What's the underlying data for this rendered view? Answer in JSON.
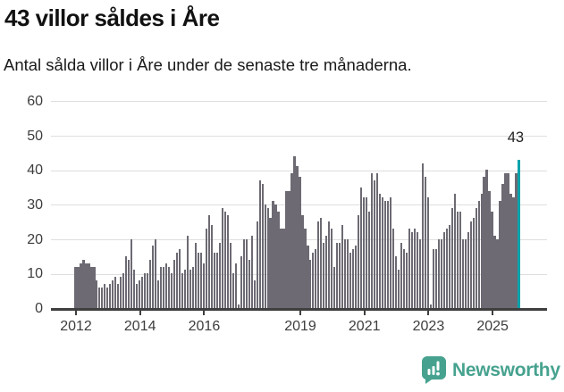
{
  "header": {
    "title": "43 villor såldes i Åre",
    "subtitle": "Antal sålda villor i Åre under de senaste tre månaderna."
  },
  "chart_data": {
    "type": "bar",
    "title": "43 villor såldes i Åre",
    "subtitle": "Antal sålda villor i Åre under de senaste tre månaderna.",
    "frequency": "monthly-rolling-3-months",
    "x_start": "2012-01",
    "x_end": "2025-11",
    "ylim": [
      0,
      60
    ],
    "y_ticks": [
      0,
      10,
      20,
      30,
      40,
      50,
      60
    ],
    "x_tick_years": [
      2012,
      2014,
      2016,
      2019,
      2021,
      2023,
      2025
    ],
    "grid": true,
    "bar_color": "#6d6a73",
    "values": [
      12,
      12,
      13,
      14,
      13,
      13,
      12,
      12,
      8,
      6,
      6,
      7,
      6,
      7,
      8,
      9,
      7,
      9,
      10,
      15,
      14,
      20,
      11,
      7,
      8,
      9,
      10,
      10,
      14,
      18,
      20,
      8,
      12,
      12,
      13,
      12,
      10,
      14,
      16,
      17,
      10,
      11,
      21,
      11,
      12,
      19,
      16,
      16,
      13,
      23,
      27,
      24,
      16,
      16,
      19,
      29,
      28,
      27,
      19,
      10,
      13,
      1,
      15,
      20,
      20,
      14,
      21,
      8,
      25,
      37,
      36,
      30,
      29,
      26,
      31,
      30,
      28,
      23,
      23,
      34,
      34,
      39,
      44,
      41,
      38,
      27,
      23,
      18,
      14,
      16,
      17,
      25,
      26,
      19,
      21,
      25,
      23,
      12,
      19,
      19,
      24,
      20,
      20,
      16,
      17,
      18,
      27,
      35,
      32,
      32,
      28,
      39,
      37,
      39,
      33,
      32,
      31,
      31,
      32,
      23,
      15,
      11,
      19,
      17,
      16,
      23,
      22,
      23,
      22,
      20,
      42,
      38,
      32,
      1,
      17,
      17,
      20,
      20,
      22,
      23,
      24,
      29,
      33,
      28,
      28,
      20,
      20,
      22,
      25,
      26,
      29,
      31,
      33,
      38,
      40,
      34,
      28,
      21,
      20,
      31,
      36,
      39,
      39,
      33,
      32,
      39,
      43
    ],
    "highlight": {
      "index": 166,
      "value": 43,
      "label": "43",
      "color": "#0aa3ab"
    }
  },
  "footer": {
    "logo_text": "Newsworthy",
    "logo_color": "#46a28f"
  }
}
